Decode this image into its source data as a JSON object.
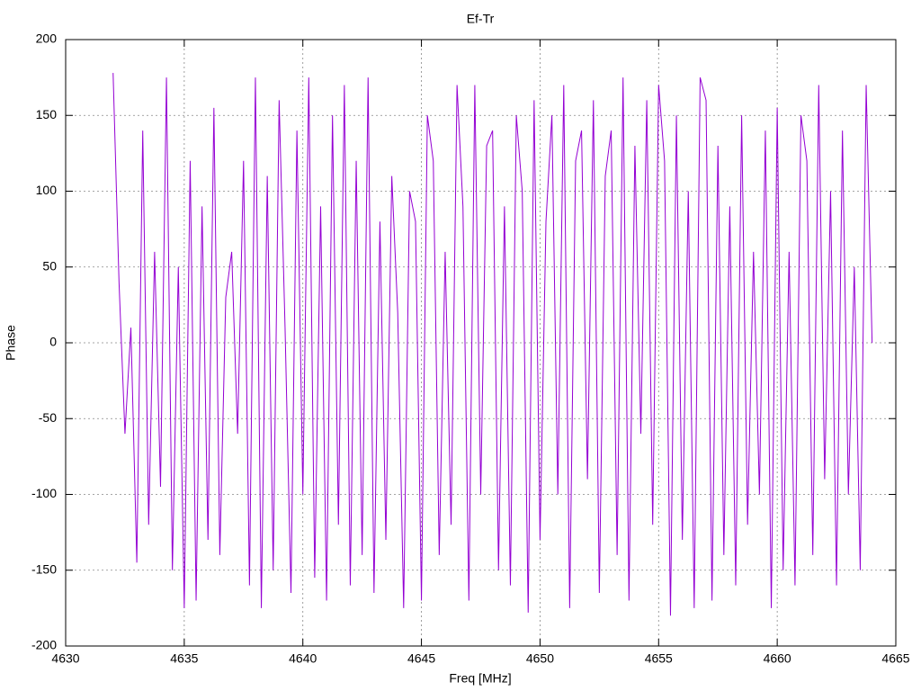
{
  "chart_data": {
    "type": "line",
    "title": "Ef-Tr",
    "x_label": "Freq [MHz]",
    "y_label": "Phase",
    "xlim": [
      4630,
      4665
    ],
    "xticks": [
      4630,
      4635,
      4640,
      4645,
      4650,
      4655,
      4660,
      4665
    ],
    "ylim": [
      -200,
      200
    ],
    "yticks": [
      -200,
      -150,
      -100,
      -50,
      0,
      50,
      100,
      150,
      200
    ],
    "grid": true,
    "x": [
      4632,
      4632.25,
      4632.5,
      4632.75,
      4633,
      4633.25,
      4633.5,
      4633.75,
      4634,
      4634.25,
      4634.5,
      4634.75,
      4635,
      4635.25,
      4635.5,
      4635.75,
      4636,
      4636.25,
      4636.5,
      4636.75,
      4637,
      4637.25,
      4637.5,
      4637.75,
      4638,
      4638.25,
      4638.5,
      4638.75,
      4639,
      4639.25,
      4639.5,
      4639.75,
      4640,
      4640.25,
      4640.5,
      4640.75,
      4641,
      4641.25,
      4641.5,
      4641.75,
      4642,
      4642.25,
      4642.5,
      4642.75,
      4643,
      4643.25,
      4643.5,
      4643.75,
      4644,
      4644.25,
      4644.5,
      4644.75,
      4645,
      4645.25,
      4645.5,
      4645.75,
      4646,
      4646.25,
      4646.5,
      4646.75,
      4647,
      4647.25,
      4647.5,
      4647.75,
      4648,
      4648.25,
      4648.5,
      4648.75,
      4649,
      4649.25,
      4649.5,
      4649.75,
      4650,
      4650.25,
      4650.5,
      4650.75,
      4651,
      4651.25,
      4651.5,
      4651.75,
      4652,
      4652.25,
      4652.5,
      4652.75,
      4653,
      4653.25,
      4653.5,
      4653.75,
      4654,
      4654.25,
      4654.5,
      4654.75,
      4655,
      4655.25,
      4655.5,
      4655.75,
      4656,
      4656.25,
      4656.5,
      4656.75,
      4657,
      4657.25,
      4657.5,
      4657.75,
      4658,
      4658.25,
      4658.5,
      4658.75,
      4659,
      4659.25,
      4659.5,
      4659.75,
      4660,
      4660.25,
      4660.5,
      4660.75,
      4661,
      4661.25,
      4661.5,
      4661.75,
      4662,
      4662.25,
      4662.5,
      4662.75,
      4663,
      4663.25,
      4663.5,
      4663.75,
      4664
    ],
    "series": [
      {
        "color": "#9400d3",
        "values": [
          178,
          40,
          -60,
          10,
          -145,
          140,
          -120,
          60,
          -95,
          175,
          -150,
          50,
          -175,
          120,
          -170,
          90,
          -130,
          155,
          -140,
          30,
          60,
          -60,
          120,
          -160,
          175,
          -175,
          110,
          -150,
          160,
          10,
          -165,
          140,
          -100,
          175,
          -155,
          90,
          -170,
          150,
          -120,
          170,
          -160,
          120,
          -140,
          175,
          -165,
          80,
          -130,
          110,
          20,
          -175,
          100,
          80,
          -170,
          150,
          120,
          -140,
          60,
          -120,
          170,
          90,
          -170,
          170,
          -100,
          130,
          140,
          -150,
          90,
          -160,
          150,
          100,
          -178,
          160,
          -130,
          80,
          150,
          -100,
          170,
          -175,
          120,
          140,
          -90,
          160,
          -165,
          110,
          140,
          -140,
          175,
          -170,
          130,
          -60,
          160,
          -120,
          170,
          120,
          -180,
          150,
          -130,
          100,
          -175,
          175,
          160,
          -170,
          130,
          -140,
          90,
          -160,
          150,
          -120,
          60,
          -100,
          140,
          -175,
          155,
          -150,
          60,
          -160,
          150,
          120,
          -140,
          170,
          -90,
          100,
          -160,
          140,
          -100,
          50,
          -150,
          170,
          0
        ]
      }
    ]
  }
}
